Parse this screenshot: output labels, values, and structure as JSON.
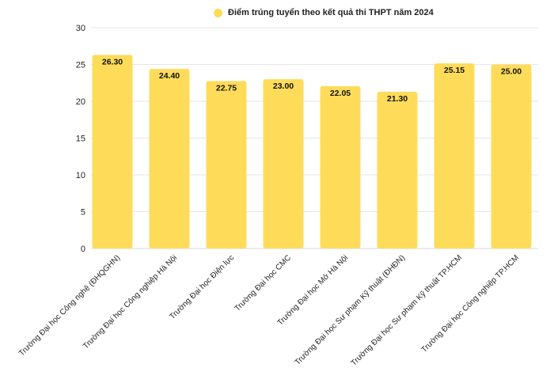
{
  "chart_data": {
    "type": "bar",
    "categories": [
      "Trường Đại học Công nghệ (ĐHQGHN)",
      "Trường Đại học Công nghiệp Hà Nội",
      "Trường Đại học Điện lực",
      "Trường Đại học CMC",
      "Trường Đại học Mở Hà Nội",
      "Trường Đại học Sư phạm Kỹ thuật (ĐHĐN)",
      "Trường Đại học Sư phạm Kỹ thuật TP.HCM",
      "Trường Đại học Công nghiệp TP.HCM"
    ],
    "series": [
      {
        "name": "Điểm trúng tuyển theo kết quả thi THPT năm 2024",
        "values": [
          26.3,
          24.4,
          22.75,
          23.0,
          22.05,
          21.3,
          25.15,
          25.0
        ],
        "value_labels": [
          "26.30",
          "24.40",
          "22.75",
          "23.00",
          "22.05",
          "21.30",
          "25.15",
          "25.00"
        ]
      }
    ],
    "ylim": [
      0,
      30
    ],
    "yticks": [
      0,
      5,
      10,
      15,
      20,
      25,
      30
    ],
    "grid": "horizontal",
    "legend_position": "top-center",
    "xlabel": "",
    "ylabel": "",
    "colors": {
      "bar": "#FEDC5A",
      "grid": "#e6e6e6",
      "text": "#222222"
    }
  }
}
